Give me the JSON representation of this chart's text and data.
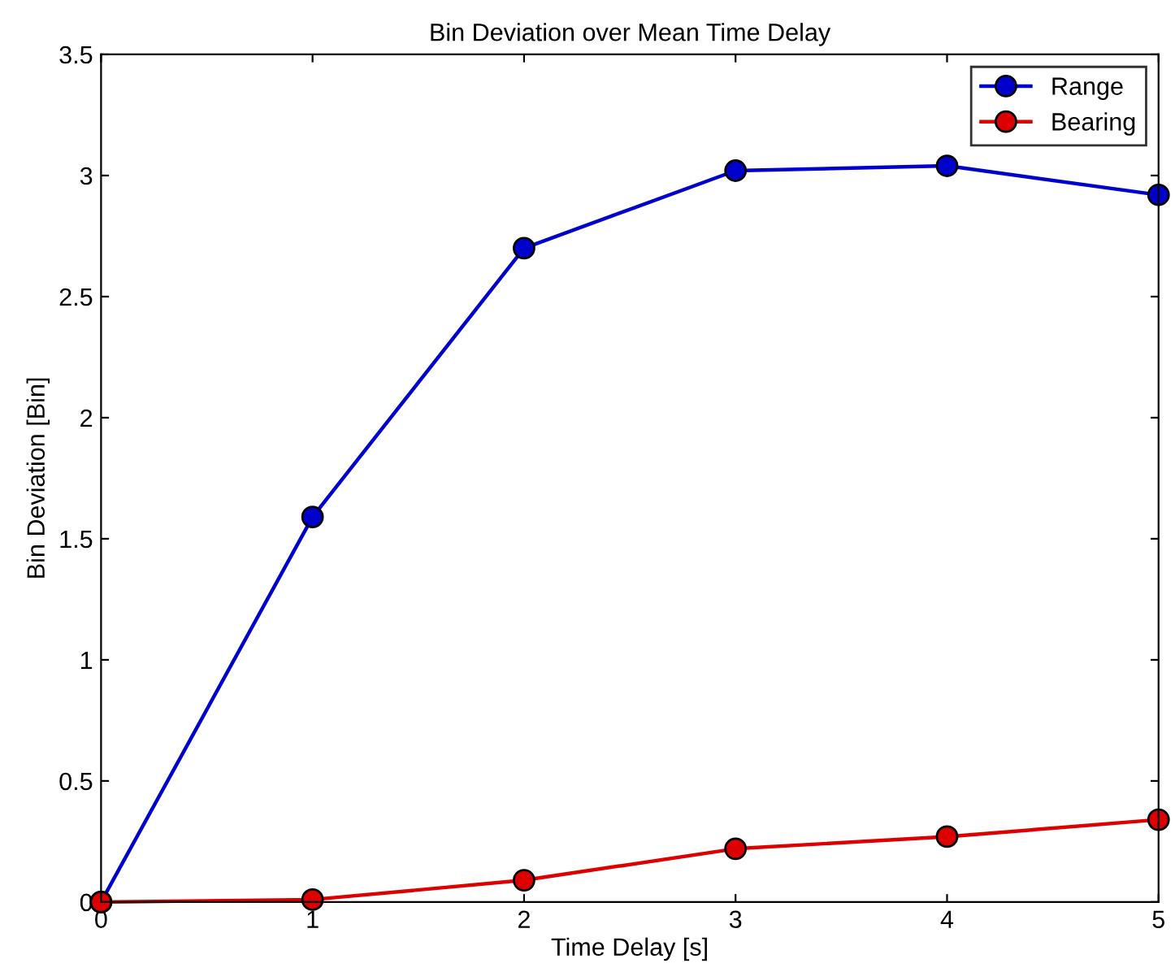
{
  "chart_data": {
    "type": "line",
    "title": "Bin Deviation over Mean Time Delay",
    "xlabel": "Time Delay [s]",
    "ylabel": "Bin Deviation [Bin]",
    "x": [
      0,
      1,
      2,
      3,
      4,
      5
    ],
    "series": [
      {
        "name": "Range",
        "color": "#0000cc",
        "values": [
          0,
          1.59,
          2.7,
          3.02,
          3.04,
          2.92
        ]
      },
      {
        "name": "Bearing",
        "color": "#dd0000",
        "values": [
          0,
          0.01,
          0.09,
          0.22,
          0.27,
          0.34
        ]
      }
    ],
    "xlim": [
      0,
      5
    ],
    "xticks": [
      0,
      1,
      2,
      3,
      4,
      5
    ],
    "ylim": [
      0,
      3.5
    ],
    "yticks": [
      0,
      0.5,
      1,
      1.5,
      2,
      2.5,
      3,
      3.5
    ],
    "marker": "circle",
    "line_style": "solid",
    "legend": "top right",
    "grid": false
  }
}
